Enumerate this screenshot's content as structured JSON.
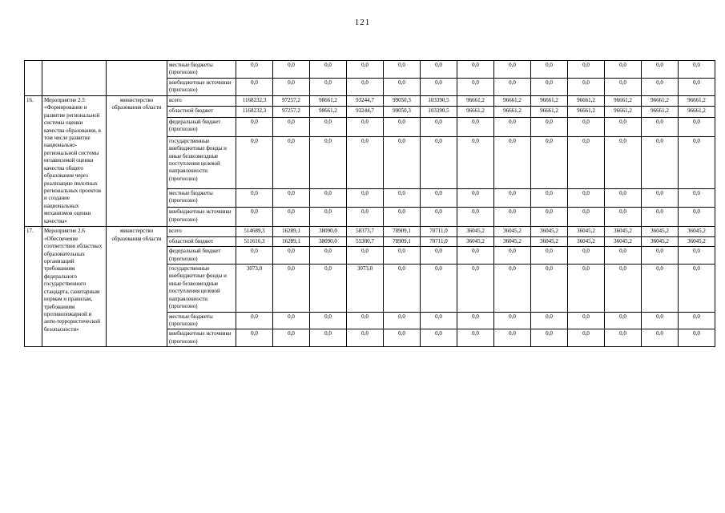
{
  "page_number": "121",
  "table": {
    "sections": [
      {
        "num": "",
        "name": "",
        "ministry": "",
        "rows": [
          {
            "label": "местные бюджеты (прогнозно)",
            "values": [
              "0,0",
              "0,0",
              "0,0",
              "0,0",
              "0,0",
              "0,0",
              "0,0",
              "0,0",
              "0,0",
              "0,0",
              "0,0",
              "0,0",
              "0,0"
            ]
          },
          {
            "label": "внебюджетные источники (прогнозно)",
            "values": [
              "0,0",
              "0,0",
              "0,0",
              "0,0",
              "0,0",
              "0,0",
              "0,0",
              "0,0",
              "0,0",
              "0,0",
              "0,0",
              "0,0",
              "0,0"
            ]
          }
        ]
      },
      {
        "num": "16.",
        "name": "Мероприятие 2.5 «Формирование и развитие региональной системы оценки качества образования, в том числе развитие национально-региональной системы независимой оценки качества общего образования через реализацию пилотных региональных проектов и создание национальных механизмов оценки качества»",
        "ministry": "министерство образования области",
        "rows": [
          {
            "label": "всего",
            "values": [
              "1168232,3",
              "97257,2",
              "98661,2",
              "93244,7",
              "99050,3",
              "103390,5",
              "96661,2",
              "96661,2",
              "96661,2",
              "96661,2",
              "96661,2",
              "96661,2",
              "96661,2"
            ]
          },
          {
            "label": "областной бюджет",
            "values": [
              "1168232,3",
              "97257,2",
              "98661,2",
              "93244,7",
              "99050,3",
              "103390,5",
              "96661,2",
              "96661,2",
              "96661,2",
              "96661,2",
              "96661,2",
              "96661,2",
              "96661,2"
            ]
          },
          {
            "label": "федеральный бюджет (прогнозно)",
            "values": [
              "0,0",
              "0,0",
              "0,0",
              "0,0",
              "0,0",
              "0,0",
              "0,0",
              "0,0",
              "0,0",
              "0,0",
              "0,0",
              "0,0",
              "0,0"
            ]
          },
          {
            "label": "государственные внебюджетные фонды и иные безвозмездные поступления целевой направленности (прогнозно)",
            "values": [
              "0,0",
              "0,0",
              "0,0",
              "0,0",
              "0,0",
              "0,0",
              "0,0",
              "0,0",
              "0,0",
              "0,0",
              "0,0",
              "0,0",
              "0,0"
            ]
          },
          {
            "label": "местные бюджеты (прогнозно)",
            "values": [
              "0,0",
              "0,0",
              "0,0",
              "0,0",
              "0,0",
              "0,0",
              "0,0",
              "0,0",
              "0,0",
              "0,0",
              "0,0",
              "0,0",
              "0,0"
            ]
          },
          {
            "label": "внебюджетные источники (прогнозно)",
            "values": [
              "0,0",
              "0,0",
              "0,0",
              "0,0",
              "0,0",
              "0,0",
              "0,0",
              "0,0",
              "0,0",
              "0,0",
              "0,0",
              "0,0",
              "0,0"
            ]
          }
        ]
      },
      {
        "num": "17.",
        "name": "Мероприятие 2.6 «Обеспечение соответствия областных образовательных организаций требованиям федерального государственного стандарта, санитарным нормам и правилам, требованиям противопожарной и анти-террористической безопасности»",
        "ministry": "министерство образования области",
        "rows": [
          {
            "label": "всего",
            "values": [
              "514689,3",
              "16289,1",
              "38090,0",
              "58373,7",
              "78909,1",
              "70711,0",
              "36045,2",
              "36045,2",
              "36045,2",
              "36045,2",
              "36045,2",
              "36045,2",
              "36045,2"
            ]
          },
          {
            "label": "областной бюджет",
            "values": [
              "511616,3",
              "16289,1",
              "38090,0",
              "55300,7",
              "78909,1",
              "70711,0",
              "36045,2",
              "36045,2",
              "36045,2",
              "36045,2",
              "36045,2",
              "36045,2",
              "36045,2"
            ]
          },
          {
            "label": "федеральный бюджет (прогнозно)",
            "values": [
              "0,0",
              "0,0",
              "0,0",
              "0,0",
              "0,0",
              "0,0",
              "0,0",
              "0,0",
              "0,0",
              "0,0",
              "0,0",
              "0,0",
              "0,0"
            ]
          },
          {
            "label": "государственные внебюджетные фонды и иные безвозмездные поступления целевой направленности (прогнозно)",
            "values": [
              "3073,0",
              "0,0",
              "0,0",
              "3073,0",
              "0,0",
              "0,0",
              "0,0",
              "0,0",
              "0,0",
              "0,0",
              "0,0",
              "0,0",
              "0,0"
            ]
          },
          {
            "label": "местные бюджеты (прогнозно)",
            "values": [
              "0,0",
              "0,0",
              "0,0",
              "0,0",
              "0,0",
              "0,0",
              "0,0",
              "0,0",
              "0,0",
              "0,0",
              "0,0",
              "0,0",
              "0,0"
            ]
          },
          {
            "label": "внебюджетные источники (прогнозно)",
            "values": [
              "0,0",
              "0,0",
              "0,0",
              "0,0",
              "0,0",
              "0,0",
              "0,0",
              "0,0",
              "0,0",
              "0,0",
              "0,0",
              "0,0",
              "0,0"
            ]
          }
        ]
      }
    ]
  }
}
